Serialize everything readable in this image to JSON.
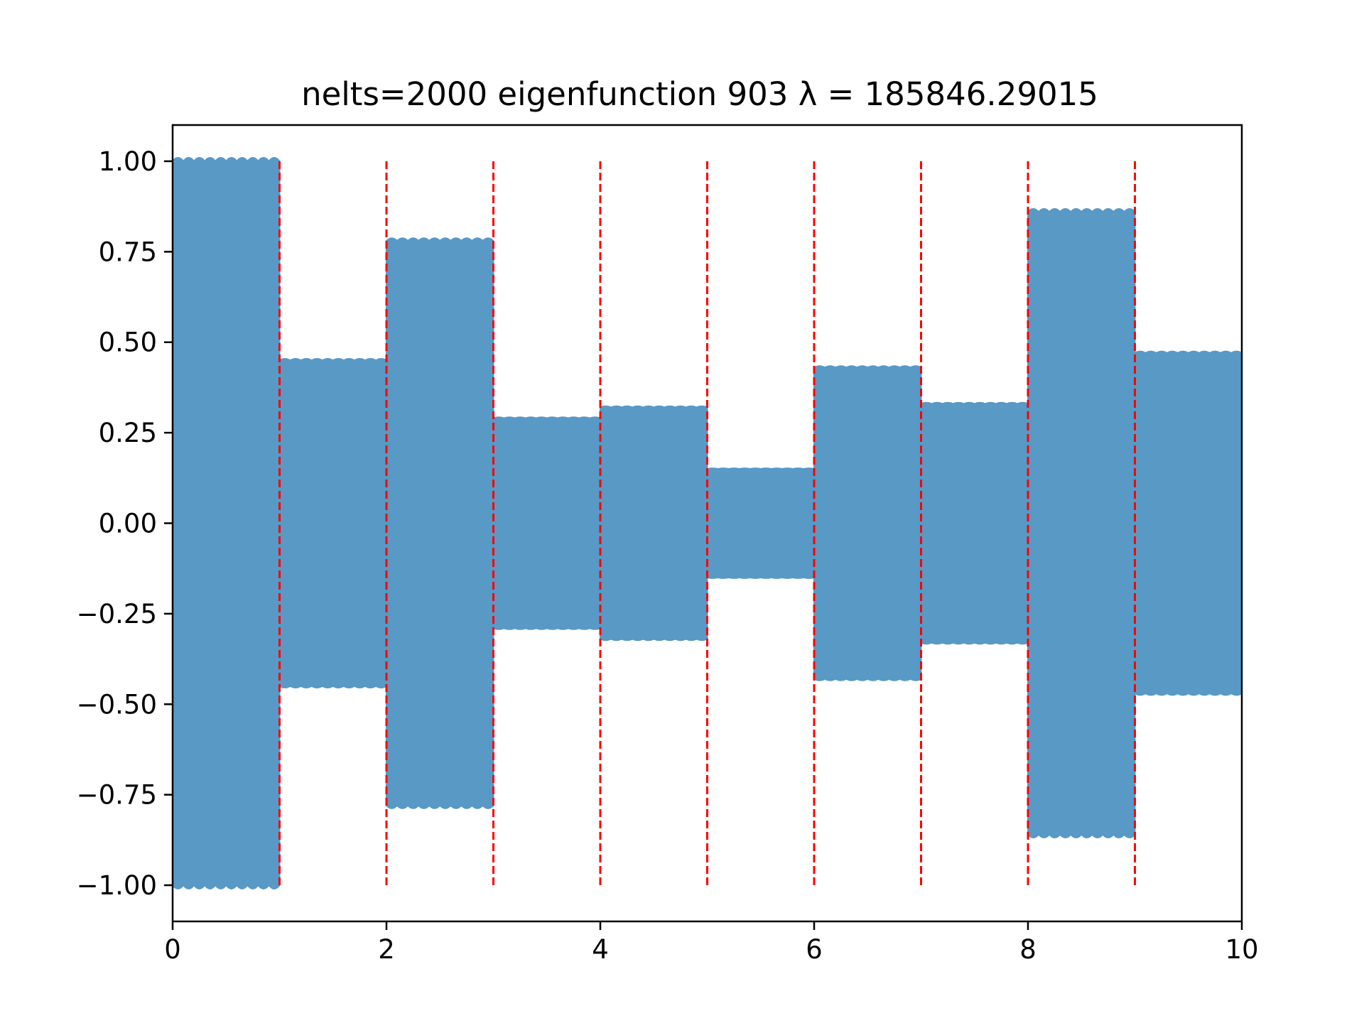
{
  "chart_data": {
    "type": "line",
    "title": "nelts=2000  eigenfunction 903  λ = 185846.29015",
    "xlabel": "",
    "ylabel": "",
    "xlim": [
      0,
      10
    ],
    "ylim": [
      -1.1,
      1.1
    ],
    "x_ticks": [
      0,
      2,
      4,
      6,
      8,
      10
    ],
    "x_tick_labels": [
      "0",
      "2",
      "4",
      "6",
      "8",
      "10"
    ],
    "y_ticks": [
      1.0,
      0.75,
      0.5,
      0.25,
      0.0,
      -0.25,
      -0.5,
      -0.75,
      -1.0
    ],
    "y_tick_labels": [
      "1.00",
      "0.75",
      "0.50",
      "0.25",
      "0.00",
      "−0.25",
      "−0.50",
      "−0.75",
      "−1.00"
    ],
    "grid": false,
    "series": [
      {
        "color": "#5899c6",
        "segments": [
          {
            "x_start": 0,
            "x_end": 1,
            "amplitude": 1.0
          },
          {
            "x_start": 1,
            "x_end": 2,
            "amplitude": 0.45
          },
          {
            "x_start": 2,
            "x_end": 3,
            "amplitude": 0.78
          },
          {
            "x_start": 3,
            "x_end": 4,
            "amplitude": 0.29
          },
          {
            "x_start": 4,
            "x_end": 5,
            "amplitude": 0.32
          },
          {
            "x_start": 5,
            "x_end": 6,
            "amplitude": 0.15
          },
          {
            "x_start": 6,
            "x_end": 7,
            "amplitude": 0.43
          },
          {
            "x_start": 7,
            "x_end": 8,
            "amplitude": 0.33
          },
          {
            "x_start": 8,
            "x_end": 9,
            "amplitude": 0.86
          },
          {
            "x_start": 9,
            "x_end": 10,
            "amplitude": 0.47
          }
        ]
      }
    ],
    "vertical_lines": {
      "x": [
        1,
        2,
        3,
        4,
        5,
        6,
        7,
        8,
        9
      ],
      "y_range": [
        -1,
        1
      ],
      "color": "#ff0000",
      "style": "dashed"
    }
  }
}
